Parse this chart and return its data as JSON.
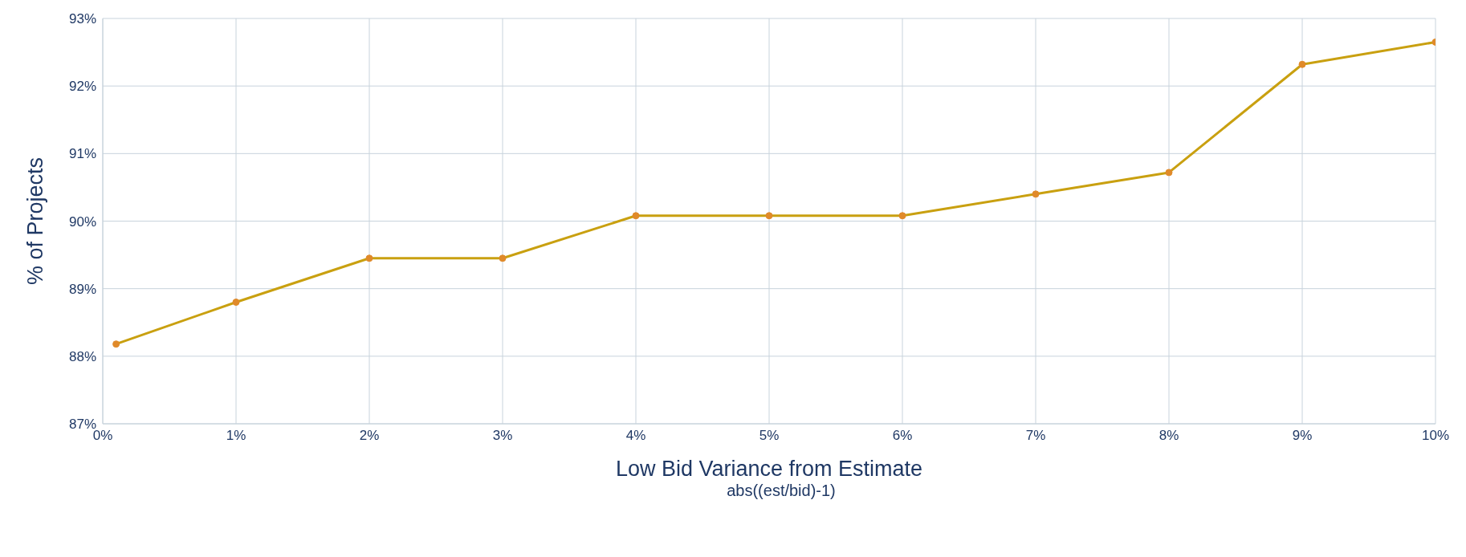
{
  "chart_data": {
    "type": "line",
    "xlabel": "Low Bid Variance from Estimate",
    "ylabel": "% of Projects",
    "annotations": [
      "abs((est/bid)-1)"
    ],
    "x": [
      0.1,
      1,
      2,
      3,
      4,
      5,
      6,
      7,
      8,
      9,
      10
    ],
    "series": [
      {
        "color": "#c9a010",
        "values": [
          88.18,
          88.8,
          89.45,
          89.45,
          90.08,
          90.08,
          90.08,
          90.4,
          90.72,
          92.32,
          92.65
        ]
      }
    ],
    "xlim": [
      0,
      10
    ],
    "xticks": [
      {
        "value": 0,
        "label": "0%"
      },
      {
        "value": 1,
        "label": "1%"
      },
      {
        "value": 2,
        "label": "2%"
      },
      {
        "value": 3,
        "label": "3%"
      },
      {
        "value": 4,
        "label": "4%"
      },
      {
        "value": 5,
        "label": "5%"
      },
      {
        "value": 6,
        "label": "6%"
      },
      {
        "value": 7,
        "label": "7%"
      },
      {
        "value": 8,
        "label": "8%"
      },
      {
        "value": 9,
        "label": "9%"
      },
      {
        "value": 10,
        "label": "10%"
      }
    ],
    "ylim": [
      87,
      93
    ],
    "yticks": [
      {
        "value": 87,
        "label": "87%"
      },
      {
        "value": 88,
        "label": "88%"
      },
      {
        "value": 89,
        "label": "89%"
      },
      {
        "value": 90,
        "label": "90%"
      },
      {
        "value": 91,
        "label": "91%"
      },
      {
        "value": 92,
        "label": "92%"
      },
      {
        "value": 93,
        "label": "93%"
      }
    ],
    "grid": true,
    "marker": "circle",
    "line_style": "solid"
  }
}
